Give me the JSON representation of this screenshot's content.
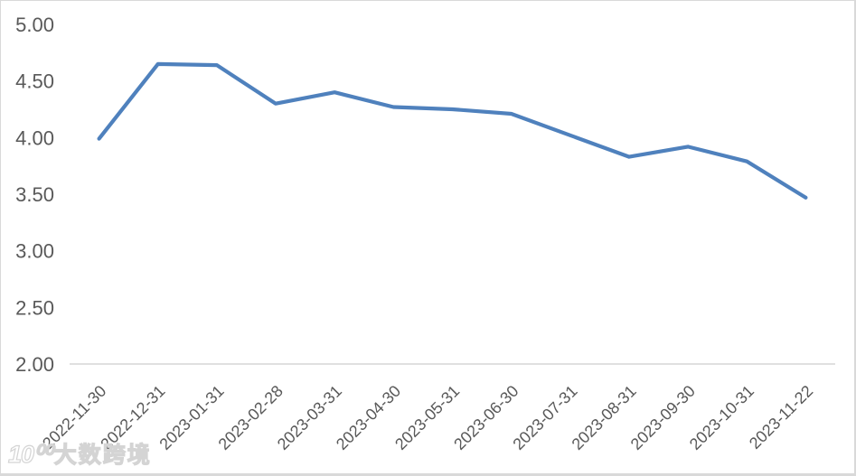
{
  "watermark": {
    "logo_text": "10⁰⁰",
    "brand_text": "大数跨境"
  },
  "chart_data": {
    "type": "line",
    "title": "",
    "x": [
      "2022-11-30",
      "2022-12-31",
      "2023-01-31",
      "2023-02-28",
      "2023-03-31",
      "2023-04-30",
      "2023-05-31",
      "2023-06-30",
      "2023-07-31",
      "2023-08-31",
      "2023-09-30",
      "2023-10-31",
      "2023-11-22"
    ],
    "series": [
      {
        "name": "",
        "color": "#4f81bd",
        "values": [
          3.99,
          4.65,
          4.64,
          4.3,
          4.4,
          4.27,
          4.25,
          4.21,
          4.02,
          3.83,
          3.92,
          3.79,
          3.47
        ]
      }
    ],
    "ylim": [
      2.0,
      5.0
    ],
    "ytick_step": 0.5,
    "ytick_decimals": 2,
    "ytick_labels": [
      "5.00",
      "4.50",
      "4.00",
      "3.50",
      "3.00",
      "2.50",
      "2.00"
    ],
    "xlabel": "",
    "ylabel": "",
    "grid": false,
    "legend_position": "none",
    "x_label_rotation": -45,
    "axis_line_color": "#d6d6d6",
    "label_color": "#595959",
    "background_color": "#ffffff"
  }
}
